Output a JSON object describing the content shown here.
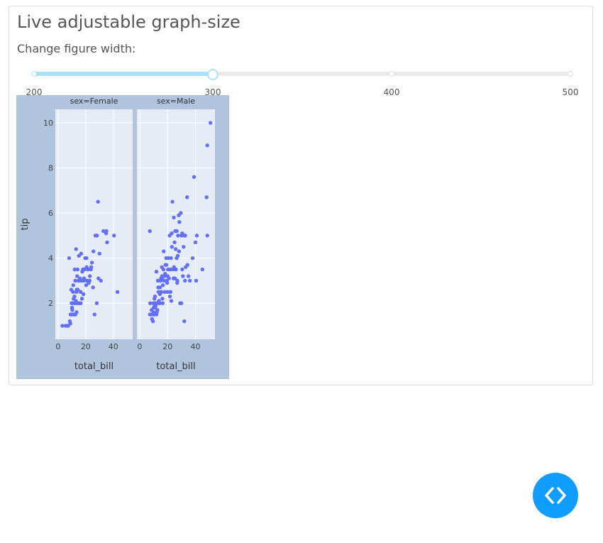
{
  "app": {
    "title": "Live adjustable graph-size",
    "slider_label": "Change figure width:"
  },
  "slider": {
    "min": 200,
    "max": 500,
    "value": 300,
    "marks": [
      {
        "value": 200,
        "label": "200"
      },
      {
        "value": 300,
        "label": "300"
      },
      {
        "value": 400,
        "label": "400"
      },
      {
        "value": 500,
        "label": "500"
      }
    ],
    "track_color": "#abe2fb"
  },
  "chart_data": {
    "type": "scatter",
    "ylabel": "tip",
    "y_range": [
      0.4,
      10.6
    ],
    "y_ticks": [
      "2",
      "4",
      "6",
      "8",
      "10"
    ],
    "y_tick_values": [
      2,
      4,
      6,
      8,
      10
    ],
    "x_range": [
      -2,
      54
    ],
    "x_ticks": [
      "0",
      "20",
      "40"
    ],
    "x_tick_values": [
      0,
      20,
      40
    ],
    "paper_bgcolor": "#b0c4de",
    "plot_bgcolor": "#e5ecf6",
    "marker_color": "#636efa",
    "panels": [
      {
        "title": "sex=Female",
        "xlabel": "total_bill",
        "points": [
          [
            3.1,
            1
          ],
          [
            5.5,
            1
          ],
          [
            7.3,
            1
          ],
          [
            8.5,
            1.2
          ],
          [
            9,
            1.5
          ],
          [
            10.3,
            1.7
          ],
          [
            10.5,
            1.5
          ],
          [
            10.1,
            1.8
          ],
          [
            10.3,
            2
          ],
          [
            11.5,
            1.5
          ],
          [
            11.7,
            2
          ],
          [
            12.5,
            1.5
          ],
          [
            12.4,
            2
          ],
          [
            13.4,
            1.6
          ],
          [
            14,
            2
          ],
          [
            14.5,
            2
          ],
          [
            15,
            2
          ],
          [
            15.5,
            3
          ],
          [
            16.3,
            2.5
          ],
          [
            16.9,
            3
          ],
          [
            17.3,
            2.2
          ],
          [
            18,
            3.5
          ],
          [
            18.5,
            3
          ],
          [
            18.8,
            3.1
          ],
          [
            19.6,
            4
          ],
          [
            20.3,
            2.8
          ],
          [
            20.6,
            4
          ],
          [
            20.8,
            3
          ],
          [
            21.5,
            3.5
          ],
          [
            22.2,
            2.9
          ],
          [
            22.8,
            3
          ],
          [
            23,
            3.2
          ],
          [
            24,
            3.6
          ],
          [
            24.5,
            3.8
          ],
          [
            25.3,
            2.7
          ],
          [
            25.6,
            4.3
          ],
          [
            26.4,
            1.5
          ],
          [
            27,
            5
          ],
          [
            28,
            2
          ],
          [
            28.2,
            5
          ],
          [
            28.9,
            6.5
          ],
          [
            29.2,
            3.1
          ],
          [
            30,
            4.2
          ],
          [
            31,
            3
          ],
          [
            32.8,
            5.2
          ],
          [
            34.8,
            5.1
          ],
          [
            35,
            5.2
          ],
          [
            35.5,
            4.7
          ],
          [
            40.5,
            5
          ],
          [
            43,
            2.5
          ],
          [
            8.9,
            1.1
          ],
          [
            11.9,
            2.3
          ],
          [
            9.5,
            2.6
          ],
          [
            13,
            4.4
          ],
          [
            14.1,
            3.5
          ],
          [
            12.4,
            3
          ],
          [
            16.4,
            2
          ],
          [
            11.2,
            2.2
          ],
          [
            13.8,
            3.2
          ],
          [
            15.1,
            4.1
          ],
          [
            16.7,
            4.2
          ],
          [
            19,
            3.5
          ],
          [
            20.7,
            3.6
          ],
          [
            14.3,
            2.6
          ],
          [
            17.5,
            3.4
          ],
          [
            12,
            3.5
          ],
          [
            10.8,
            2.5
          ],
          [
            13.3,
            2.5
          ],
          [
            15.9,
            3.1
          ],
          [
            18.4,
            2.4
          ],
          [
            21,
            3
          ],
          [
            23.7,
            3.5
          ],
          [
            10,
            1.5
          ],
          [
            9.8,
            2
          ],
          [
            12.9,
            2.1
          ],
          [
            14.8,
            3
          ],
          [
            13.5,
            2.6
          ],
          [
            10,
            1.8
          ],
          [
            11,
            2.8
          ],
          [
            8,
            4
          ],
          [
            6.3,
            1
          ]
        ]
      },
      {
        "title": "sex=Male",
        "xlabel": "total_bill",
        "points": [
          [
            7.3,
            1.5
          ],
          [
            7.5,
            2
          ],
          [
            8,
            1.5
          ],
          [
            8.5,
            1.7
          ],
          [
            8.8,
            1.3
          ],
          [
            9.5,
            1.2
          ],
          [
            9.8,
            2
          ],
          [
            10,
            1.8
          ],
          [
            10.3,
            1.5
          ],
          [
            10.5,
            2
          ],
          [
            10.6,
            2.2
          ],
          [
            11,
            2.3
          ],
          [
            11.2,
            1.8
          ],
          [
            11.6,
            2
          ],
          [
            12,
            1.5
          ],
          [
            12.5,
            2
          ],
          [
            13,
            3
          ],
          [
            13.5,
            2.5
          ],
          [
            14,
            2
          ],
          [
            14.5,
            2.7
          ],
          [
            15,
            3
          ],
          [
            15.5,
            2.5
          ],
          [
            16,
            3.2
          ],
          [
            16.5,
            2
          ],
          [
            17,
            3.5
          ],
          [
            17.5,
            3
          ],
          [
            18,
            2.5
          ],
          [
            18.5,
            3.7
          ],
          [
            19,
            4
          ],
          [
            19.5,
            3
          ],
          [
            20,
            2.5
          ],
          [
            20.5,
            4
          ],
          [
            21,
            3.1
          ],
          [
            21.5,
            5
          ],
          [
            22,
            3.5
          ],
          [
            22.5,
            4
          ],
          [
            23,
            5.1
          ],
          [
            23.5,
            6.5
          ],
          [
            24,
            3.5
          ],
          [
            24.5,
            5.8
          ],
          [
            25,
            4.7
          ],
          [
            25.5,
            5.2
          ],
          [
            26,
            3.5
          ],
          [
            26.5,
            4
          ],
          [
            27,
            3
          ],
          [
            27.5,
            5
          ],
          [
            28,
            5.9
          ],
          [
            28.5,
            5.6
          ],
          [
            29,
            2
          ],
          [
            29.5,
            6
          ],
          [
            30,
            5
          ],
          [
            30.5,
            5.1
          ],
          [
            31,
            3.2
          ],
          [
            31.5,
            4.5
          ],
          [
            32,
            1.2
          ],
          [
            32.5,
            3
          ],
          [
            33,
            3.6
          ],
          [
            34,
            6.7
          ],
          [
            35,
            3.2
          ],
          [
            36,
            3
          ],
          [
            38,
            4
          ],
          [
            39,
            7.6
          ],
          [
            40,
            4.7
          ],
          [
            40.5,
            3
          ],
          [
            41,
            5
          ],
          [
            45,
            3.5
          ],
          [
            48,
            6.7
          ],
          [
            48.5,
            9
          ],
          [
            48.5,
            5
          ],
          [
            50.8,
            10
          ],
          [
            7.3,
            5.2
          ],
          [
            12,
            3.4
          ],
          [
            14.5,
            2.4
          ],
          [
            15.8,
            3.1
          ],
          [
            17.2,
            4.3
          ],
          [
            18.2,
            3.3
          ],
          [
            19.7,
            2.9
          ],
          [
            20.3,
            3.5
          ],
          [
            21.7,
            2.3
          ],
          [
            22.7,
            2.1
          ],
          [
            24.3,
            3.1
          ],
          [
            25.3,
            3.1
          ],
          [
            26.9,
            2.9
          ],
          [
            28.2,
            4.3
          ],
          [
            29.9,
            2
          ],
          [
            30.5,
            3.5
          ],
          [
            34.3,
            3.7
          ],
          [
            13.8,
            2.1
          ],
          [
            15.3,
            3.1
          ],
          [
            16.3,
            2.2
          ],
          [
            18.3,
            3.3
          ],
          [
            12.7,
            1.7
          ],
          [
            9.9,
            1.6
          ],
          [
            11.4,
            1.9
          ],
          [
            14.3,
            2
          ],
          [
            16.6,
            2.8
          ],
          [
            20.1,
            3.2
          ],
          [
            22.1,
            2.5
          ],
          [
            24.6,
            3.6
          ],
          [
            10.8,
            1.9
          ],
          [
            13.3,
            2.7
          ],
          [
            17.8,
            3.2
          ],
          [
            19.2,
            3.7
          ],
          [
            9.6,
            1.5
          ],
          [
            12.3,
            1.6
          ],
          [
            15.9,
            3.6
          ],
          [
            23.1,
            4.5
          ],
          [
            26.6,
            5.2
          ],
          [
            31.9,
            5
          ],
          [
            25.8,
            4.4
          ],
          [
            27.3,
            4.1
          ],
          [
            32.7,
            5
          ]
        ]
      }
    ]
  }
}
